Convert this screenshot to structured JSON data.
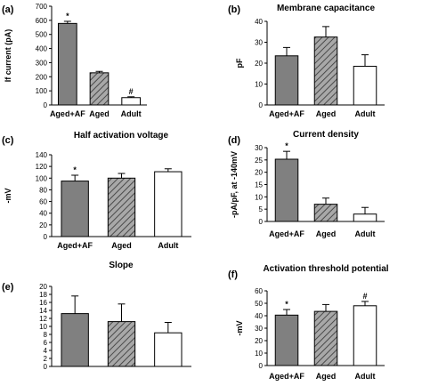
{
  "chart_data": [
    {
      "panel": "(a)",
      "type": "bar",
      "title": "",
      "ylabel": "If current (pA)",
      "xlabel": "",
      "ylim": [
        0,
        700
      ],
      "yticks": [
        0,
        100,
        200,
        300,
        400,
        500,
        600,
        700
      ],
      "grid": false,
      "categories": [
        "Aged+AF",
        "Aged",
        "Adult"
      ],
      "values": [
        578,
        228,
        52
      ],
      "errors": [
        15,
        10,
        6
      ],
      "markers": [
        "*",
        "",
        "#"
      ]
    },
    {
      "panel": "(b)",
      "type": "bar",
      "title": "Membrane capacitance",
      "ylabel": "pF",
      "xlabel": "",
      "ylim": [
        0,
        40
      ],
      "yticks": [
        0,
        10,
        20,
        30,
        40
      ],
      "grid": false,
      "categories": [
        "Aged+AF",
        "Aged",
        "Adult"
      ],
      "values": [
        23.5,
        32.5,
        18.5
      ],
      "errors": [
        4,
        5,
        5.5
      ],
      "markers": [
        "",
        "",
        ""
      ]
    },
    {
      "panel": "(c)",
      "type": "bar",
      "title": "Half activation voltage",
      "ylabel": "-mV",
      "xlabel": "",
      "ylim": [
        0,
        140
      ],
      "yticks": [
        0,
        20,
        40,
        60,
        80,
        100,
        120,
        140
      ],
      "grid": false,
      "categories": [
        "Aged+AF",
        "Aged",
        "Adult"
      ],
      "values": [
        95,
        100,
        111
      ],
      "errors": [
        10,
        8,
        5
      ],
      "markers": [
        "*",
        "",
        ""
      ]
    },
    {
      "panel": "(d)",
      "type": "bar",
      "title": "Current density",
      "ylabel": "-pA/pF, at -140mV",
      "xlabel": "",
      "ylim": [
        0,
        30
      ],
      "yticks": [
        0,
        5,
        10,
        15,
        20,
        25,
        30
      ],
      "grid": false,
      "categories": [
        "Aged+AF",
        "Aged",
        "Adult"
      ],
      "values": [
        25.3,
        7,
        3
      ],
      "errors": [
        3.2,
        2.5,
        2.7
      ],
      "markers": [
        "*",
        "",
        ""
      ]
    },
    {
      "panel": "(e)",
      "type": "bar",
      "title": "Slope",
      "ylabel": "",
      "xlabel": "",
      "ylim": [
        0,
        20
      ],
      "yticks": [
        0,
        2,
        4,
        6,
        8,
        10,
        12,
        14,
        16,
        18,
        20
      ],
      "grid": false,
      "categories": [
        "",
        "",
        ""
      ],
      "values": [
        13.2,
        11.2,
        8.4
      ],
      "errors": [
        4.4,
        4.4,
        2.6
      ],
      "markers": [
        "",
        "",
        ""
      ]
    },
    {
      "panel": "(f)",
      "type": "bar",
      "title": "Activation threshold potential",
      "ylabel": "-mV",
      "xlabel": "",
      "ylim": [
        0,
        60
      ],
      "yticks": [
        0,
        10,
        20,
        30,
        40,
        50,
        60
      ],
      "grid": false,
      "categories": [
        "Aged+AF",
        "Aged",
        "Adult"
      ],
      "values": [
        40.5,
        43.5,
        48
      ],
      "errors": [
        4.5,
        5.5,
        3.5
      ],
      "markers": [
        "*",
        "",
        "#"
      ]
    }
  ],
  "colors": {
    "aged_af_fill": "#808080",
    "aged_fill": "#a8a8a8",
    "aged_hatch": "#4a4a4a",
    "adult_fill": "#ffffff",
    "stroke": "#000000"
  }
}
